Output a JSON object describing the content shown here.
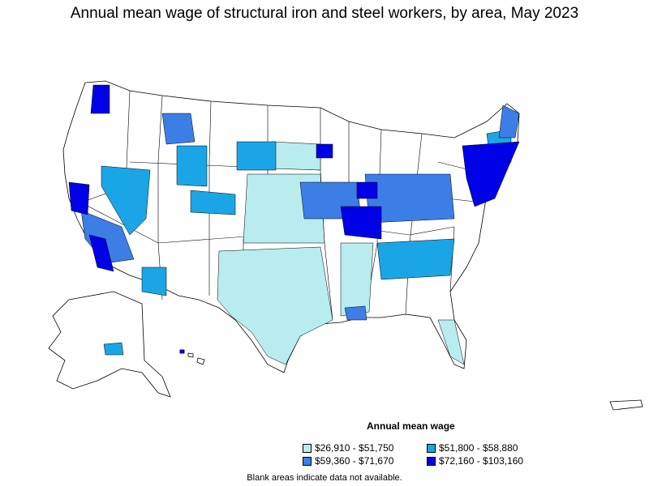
{
  "title": "Annual mean wage of structural iron and steel workers, by area, May 2023",
  "legend": {
    "title": "Annual mean wage",
    "items": [
      {
        "label": "$26,910 - $51,750",
        "color": "#b8ecef"
      },
      {
        "label": "$51,800 - $58,880",
        "color": "#1aa6e6"
      },
      {
        "label": "$59,360 - $71,670",
        "color": "#3c7ee6"
      },
      {
        "label": "$72,160 - $103,160",
        "color": "#0000e6"
      }
    ]
  },
  "footnote": "Blank areas indicate data not available.",
  "colors": {
    "none": "#ffffff",
    "low": "#b8ecef",
    "midlow": "#1aa6e6",
    "midhigh": "#3c7ee6",
    "high": "#0000e6",
    "border": "#000000"
  }
}
